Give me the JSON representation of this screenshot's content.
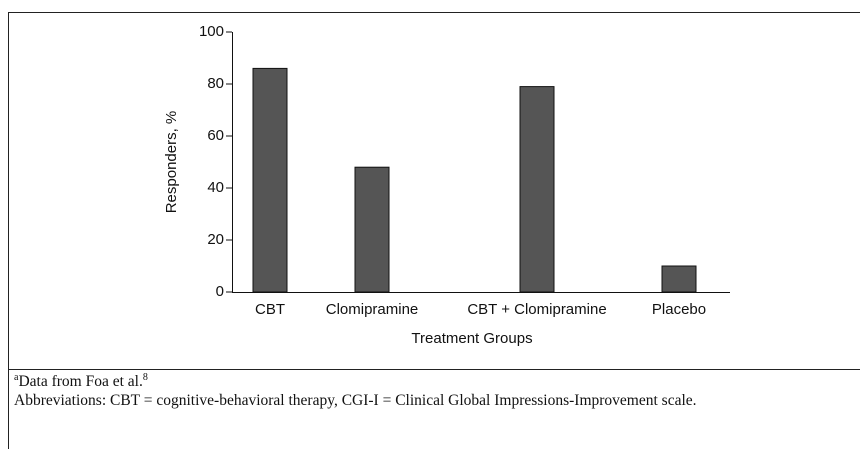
{
  "chart_data": {
    "type": "bar",
    "ylabel": "Responders, %",
    "xlabel": "Treatment Groups",
    "categories": [
      "CBT",
      "Clomipramine",
      "CBT + Clomipramine",
      "Placebo"
    ],
    "values": [
      86,
      48,
      79,
      10
    ],
    "color": "#555555",
    "ylim": [
      0,
      100
    ],
    "yticks": [
      0,
      20,
      40,
      60,
      80,
      100
    ]
  },
  "footnotes": {
    "marker": "a",
    "source": "Data from Foa et al.",
    "ref": "8",
    "abbreviations": "Abbreviations: CBT = cognitive-behavioral therapy, CGI-I = Clinical Global Impressions-Improvement scale."
  }
}
